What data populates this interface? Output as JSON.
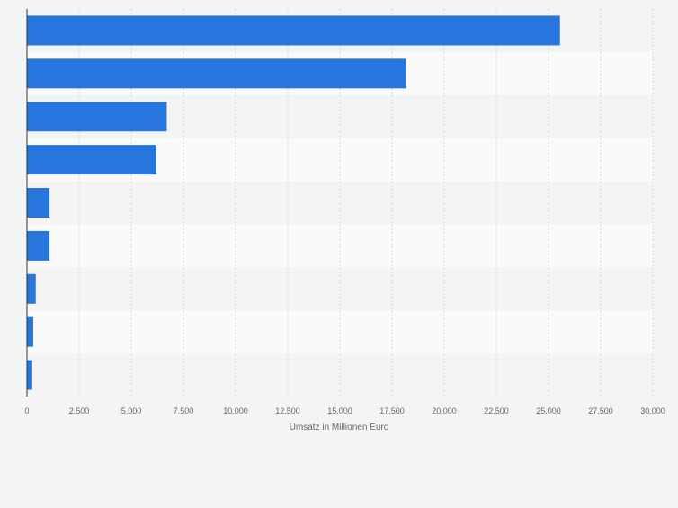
{
  "chart_data": {
    "type": "bar",
    "orientation": "horizontal",
    "categories": [
      "",
      "",
      "",
      "",
      "",
      "",
      "",
      "",
      ""
    ],
    "values": [
      25550,
      18180,
      6700,
      6200,
      1080,
      1080,
      420,
      300,
      250
    ],
    "xlabel": "Umsatz in Millionen Euro",
    "xlim": [
      0,
      30000
    ],
    "ticks": [
      0,
      2500,
      5000,
      7500,
      10000,
      12500,
      15000,
      17500,
      20000,
      22500,
      25000,
      27500,
      30000
    ],
    "tick_labels": [
      "0",
      "2.500",
      "5.000",
      "7.500",
      "10.000",
      "12.500",
      "15.000",
      "17.500",
      "20.000",
      "22.500",
      "25.000",
      "27.500",
      "30.000"
    ],
    "grid": true,
    "bar_color": "#2776dd",
    "band_colors": [
      "#f4f4f4",
      "#fafafa"
    ],
    "grid_color": "#d8d8d8"
  }
}
